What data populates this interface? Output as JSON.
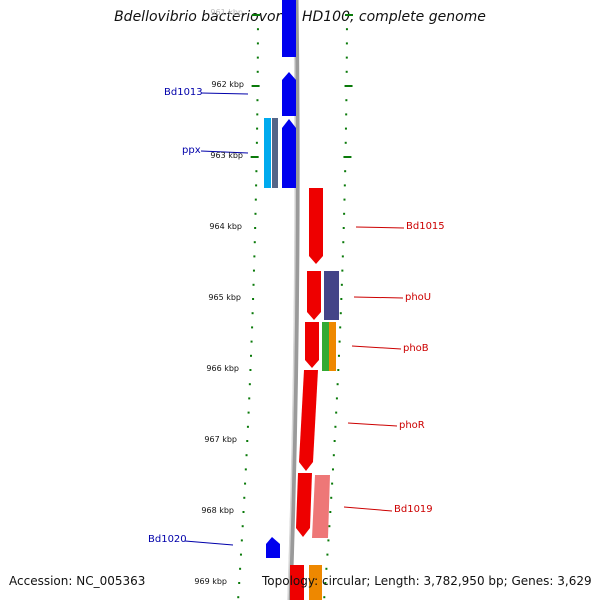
{
  "title": "Bdellovibrio bacteriovorus HD100, complete genome",
  "footer": {
    "accession": "Accession: NC_005363",
    "summary": "Topology: circular; Length: 3,782,950 bp; Genes: 3,629"
  },
  "scale_ticks": [
    "961 kbp",
    "962 kbp",
    "963 kbp",
    "964 kbp",
    "965 kbp",
    "966 kbp",
    "967 kbp",
    "968 kbp",
    "969 kbp"
  ],
  "gene_labels": {
    "left": [
      "Bd1013",
      "ppx",
      "Bd1020"
    ],
    "right": [
      "Bd1015",
      "phoU",
      "phoB",
      "phoR",
      "Bd1019"
    ]
  },
  "colors": {
    "left_strand": "#0000ee",
    "right_strand": "#ee0000",
    "ticks": "#0a7a0a",
    "backbone": "#808080",
    "label_left": "#0000aa",
    "label_right": "#cc0000"
  }
}
